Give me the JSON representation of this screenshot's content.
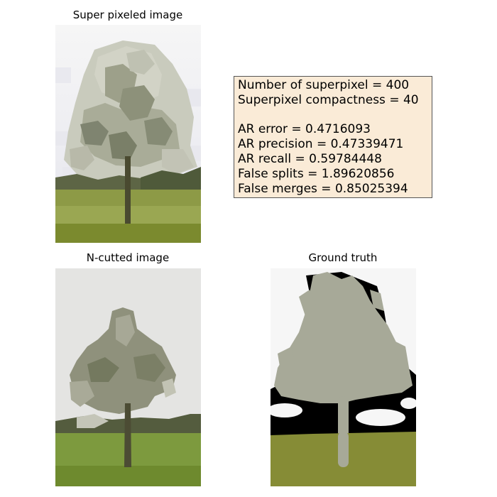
{
  "panels": {
    "superpixel_title": "Super pixeled image",
    "ncut_title": "N-cutted image",
    "ground_truth_title": "Ground truth"
  },
  "stats": {
    "num_superpixel": "Number of superpixel = 400",
    "compactness": "Superpixel compactness = 40",
    "ar_error": "AR error = 0.4716093",
    "ar_precision": "AR precision = 0.47339471",
    "ar_recall": "AR recall = 0.59784448",
    "false_splits": "False splits = 1.89620856",
    "false_merges": "False merges = 0.85025394"
  },
  "colors": {
    "sky_light": "#f2f2f4",
    "ncut_sky": "#e4e4e2",
    "tree_foliage_gt": "#a6a797",
    "grass_gt": "#868c36",
    "grass_ncut": "#7d9a3e",
    "info_box": "#faebd7"
  }
}
